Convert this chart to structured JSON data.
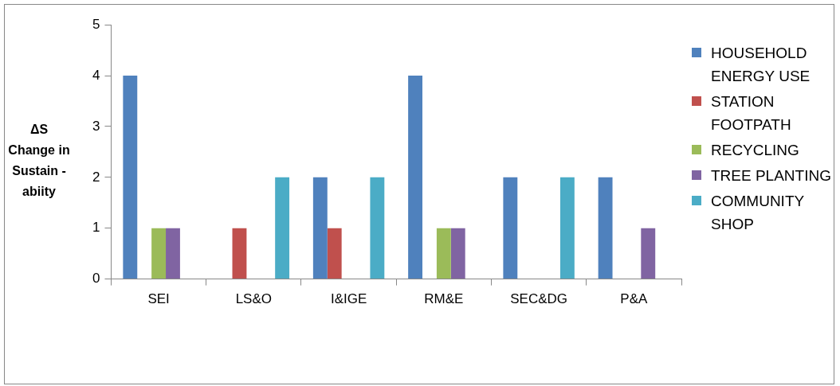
{
  "chart_data": {
    "type": "bar",
    "ylabel": "ΔS Change in Sustain -abiity",
    "categories": [
      "SEI",
      "LS&O",
      "I&IGE",
      "RM&E",
      "SEC&DG",
      "P&A"
    ],
    "series": [
      {
        "name": "HOUSEHOLD ENERGY USE",
        "color": "#4f81bd",
        "values": [
          4,
          0,
          2,
          4,
          2,
          2
        ]
      },
      {
        "name": "STATION FOOTPATH",
        "color": "#c0504d",
        "values": [
          0,
          1,
          1,
          0,
          0,
          0
        ]
      },
      {
        "name": "RECYCLING",
        "color": "#9bbb59",
        "values": [
          1,
          0,
          0,
          1,
          0,
          0
        ]
      },
      {
        "name": "TREE PLANTING",
        "color": "#8064a2",
        "values": [
          1,
          0,
          0,
          1,
          0,
          1
        ]
      },
      {
        "name": "COMMUNITY SHOP",
        "color": "#4bacc6",
        "values": [
          0,
          2,
          2,
          0,
          2,
          0
        ]
      }
    ],
    "ylim": [
      0,
      5
    ],
    "yticks": [
      0,
      1,
      2,
      3,
      4,
      5
    ],
    "grid": false,
    "legend": "right"
  }
}
